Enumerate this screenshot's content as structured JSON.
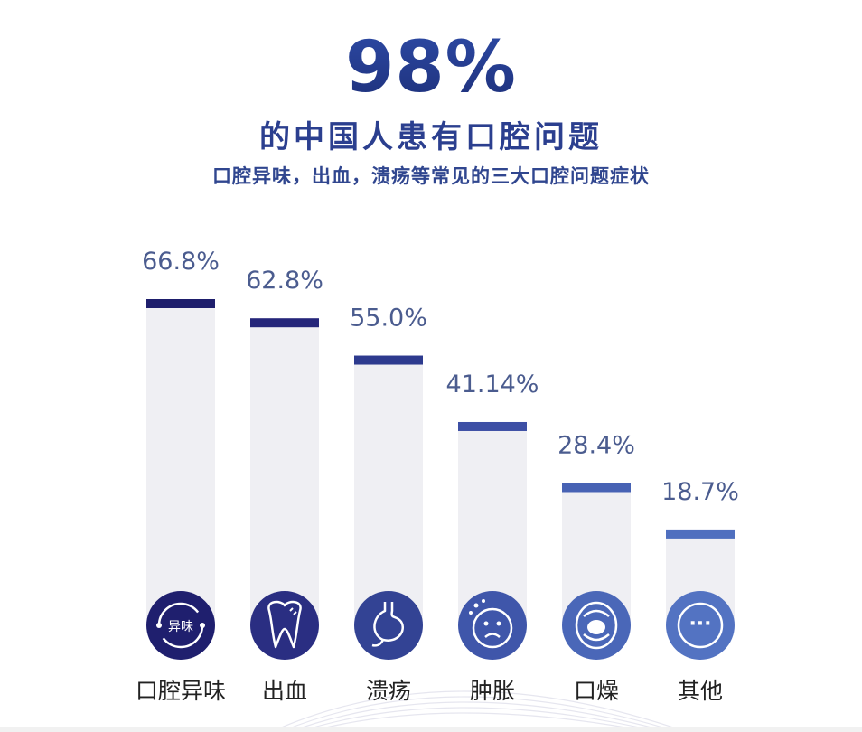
{
  "header": {
    "headline": "98%",
    "subheadline": "的中国人患有口腔问题",
    "description": "口腔异味，出血，溃疡等常见的三大口腔问题症状"
  },
  "colors": {
    "bar_track": "#efeff3",
    "value_text": "#4b5c8f",
    "category_text": "#222222",
    "wave_line": "#e6e6ef"
  },
  "chart_data": {
    "type": "bar",
    "title": "",
    "xlabel": "",
    "ylabel": "",
    "ylim": [
      0,
      70
    ],
    "grid": false,
    "categories": [
      "口腔异味",
      "出血",
      "溃疡",
      "肿胀",
      "口燥",
      "其他"
    ],
    "values": [
      66.8,
      62.8,
      55.0,
      41.14,
      28.4,
      18.7
    ],
    "value_labels": [
      "66.8%",
      "62.8%",
      "55.0%",
      "41.14%",
      "28.4%",
      "18.7%"
    ],
    "cap_colors": [
      "#1e1e6c",
      "#25267a",
      "#2d3a8e",
      "#3d4fa5",
      "#4762b4",
      "#4f6fbf"
    ],
    "icon_colors": [
      "#1f1f6e",
      "#2a2e82",
      "#334394",
      "#3f56aa",
      "#4a67b8",
      "#5373c2"
    ],
    "icons": [
      "odor-icon",
      "tooth-icon",
      "stomach-icon",
      "swollen-face-icon",
      "mouth-icon",
      "more-icon"
    ],
    "icon_texts": [
      "异味",
      "",
      "",
      "",
      "",
      "···"
    ]
  }
}
